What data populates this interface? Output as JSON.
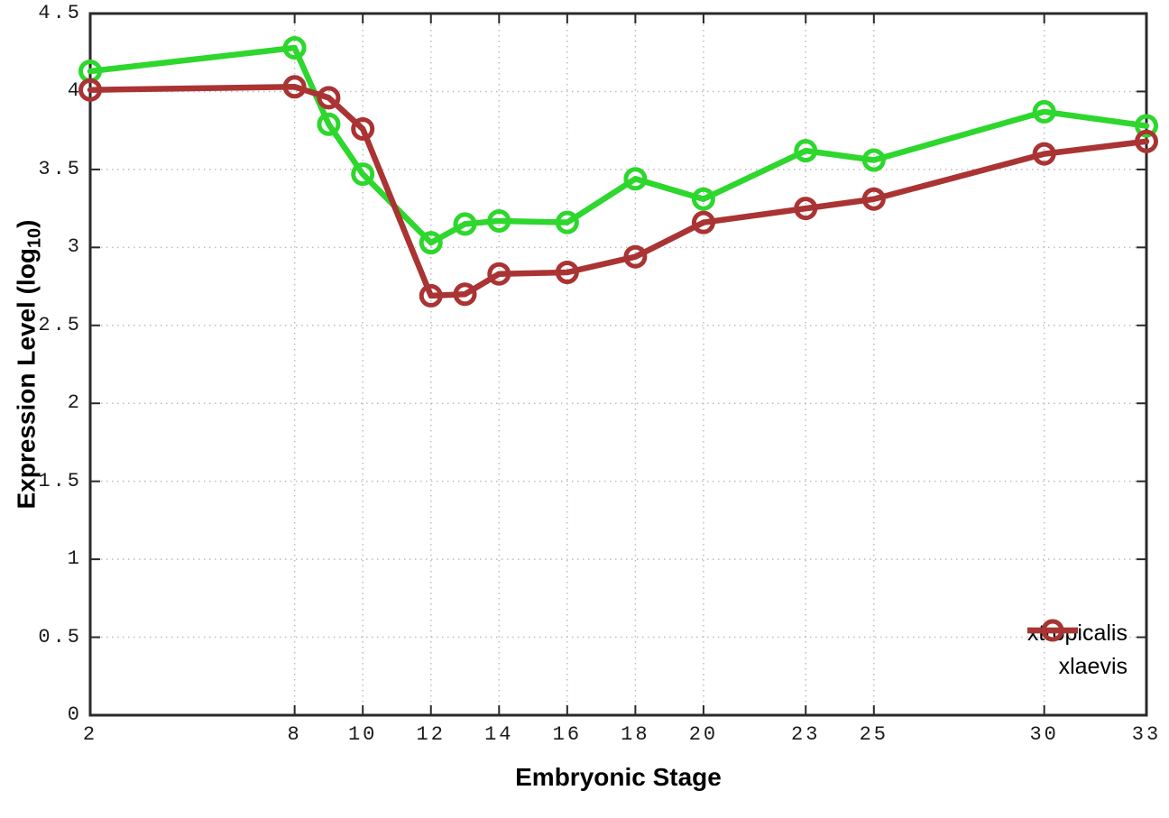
{
  "chart_data": {
    "type": "line",
    "title": "",
    "xlabel": "Embryonic Stage",
    "ylabel": "Expression Level (log10)",
    "ylabel_parts": {
      "pre": "Expression Level (log",
      "sub": "10",
      "post": ")"
    },
    "xlim": [
      2,
      33
    ],
    "ylim": [
      0,
      4.5
    ],
    "xticks": [
      2,
      8,
      10,
      12,
      14,
      16,
      18,
      20,
      23,
      25,
      30,
      33
    ],
    "xtick_labels": [
      "2",
      "8",
      "10",
      "12",
      "14",
      "16",
      "18",
      "20",
      "23",
      "25",
      "30",
      "33"
    ],
    "yticks": [
      0,
      0.5,
      1,
      1.5,
      2,
      2.5,
      3,
      3.5,
      4,
      4.5
    ],
    "ytick_labels": [
      "0",
      "0.5",
      "1",
      "1.5",
      "2",
      "2.5",
      "3",
      "3.5",
      "4",
      "4.5"
    ],
    "grid": true,
    "legend_position": "bottom-right-inside",
    "x": [
      2,
      8,
      9,
      10,
      12,
      13,
      14,
      16,
      18,
      20,
      23,
      25,
      30,
      33
    ],
    "series": [
      {
        "name": "xtropicalis",
        "color": "#2dd72d",
        "values": [
          4.13,
          4.28,
          3.79,
          3.47,
          3.03,
          3.15,
          3.17,
          3.16,
          3.44,
          3.31,
          3.62,
          3.56,
          3.87,
          3.78
        ]
      },
      {
        "name": "xlaevis",
        "color": "#aa3333",
        "values": [
          4.01,
          4.03,
          3.96,
          3.76,
          2.69,
          2.7,
          2.83,
          2.84,
          2.94,
          3.16,
          3.25,
          3.31,
          3.6,
          3.68
        ]
      }
    ],
    "colors": {
      "background": "#ffffff",
      "border": "#2a2a2a",
      "grid": "#bdbdbd"
    }
  }
}
